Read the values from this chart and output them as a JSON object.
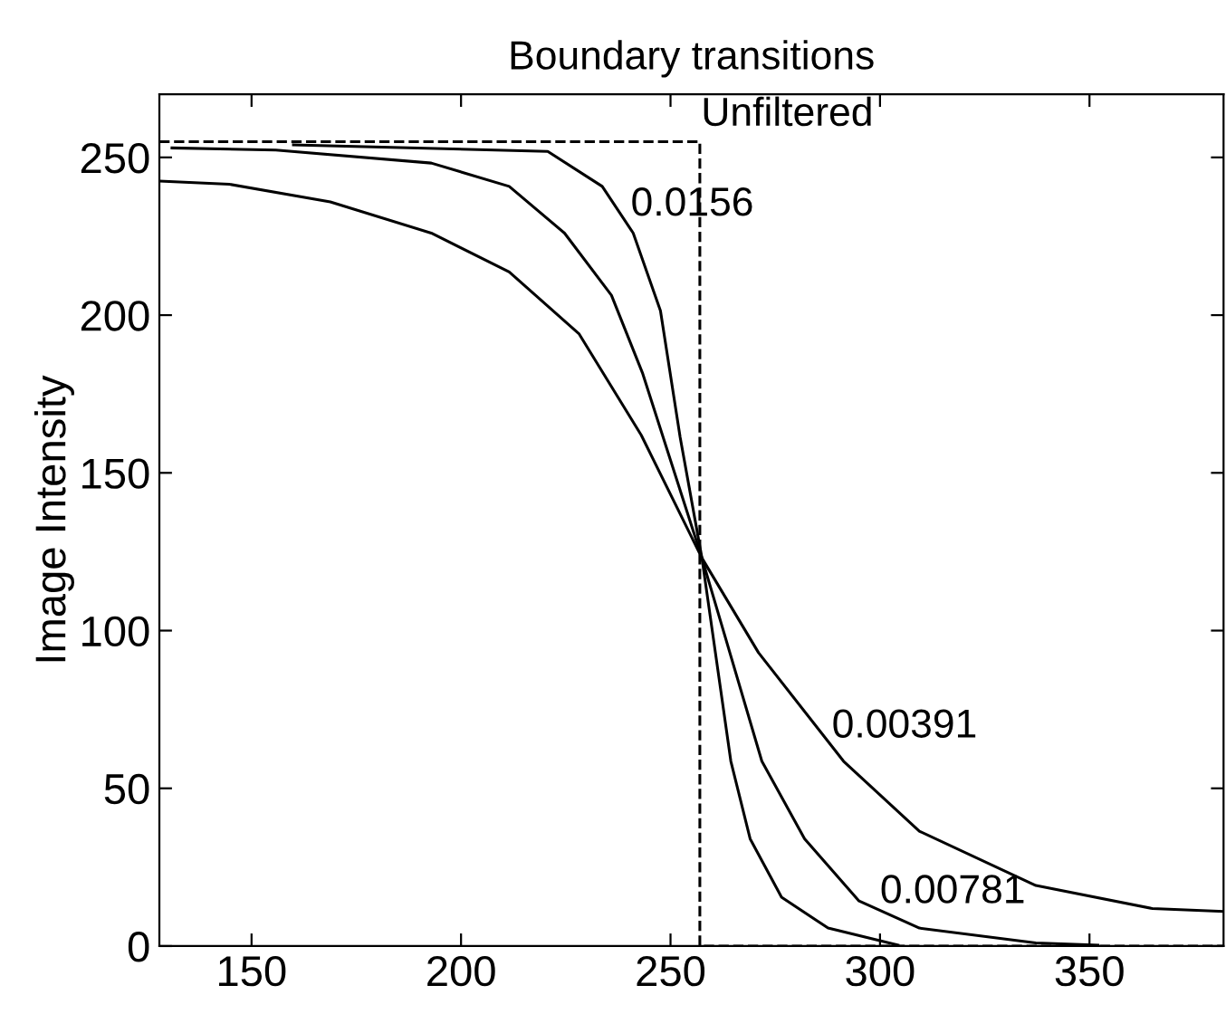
{
  "chart_data": {
    "type": "line",
    "title": "Boundary transitions",
    "ylabel": "Image Intensity",
    "xlim": [
      128,
      382
    ],
    "ylim": [
      0,
      270
    ],
    "xticks": [
      150,
      200,
      250,
      300,
      350
    ],
    "yticks": [
      0,
      50,
      100,
      150,
      200,
      250
    ],
    "grid": false,
    "legend": false,
    "marker": "none",
    "series": [
      {
        "color": "#000000",
        "line_style": "dashed",
        "x": [
          128,
          257,
          257,
          382
        ],
        "values": [
          255,
          255,
          0,
          0
        ]
      },
      {
        "color": "#000000",
        "x": [
          128,
          144.7,
          168.8,
          192.9,
          211.5,
          228.2,
          243,
          257.5,
          271,
          291.3,
          309.4,
          337.2,
          365,
          382
        ],
        "values": [
          242.5,
          241.5,
          235.9,
          226,
          213.7,
          194,
          162,
          123,
          93,
          58.6,
          36.4,
          19.2,
          11.9,
          11
        ]
      },
      {
        "color": "#000000",
        "x": [
          131,
          155.8,
          192.9,
          211.5,
          224.7,
          235.9,
          243.3,
          257.5,
          271.8,
          282,
          295,
          309.4,
          337.2,
          352
        ],
        "values": [
          253,
          252.3,
          248.2,
          240.8,
          226,
          206.3,
          181.7,
          123,
          58.6,
          34,
          14.3,
          5.7,
          1,
          0.3
        ]
      },
      {
        "color": "#000000",
        "x": [
          160,
          220.7,
          233.7,
          241.1,
          247.6,
          252.3,
          257.5,
          264.4,
          269,
          276.5,
          287.6,
          304.3
        ],
        "values": [
          254,
          251.9,
          240.8,
          226,
          201.4,
          161.3,
          123,
          58.6,
          34,
          15.5,
          5.7,
          0.3
        ]
      }
    ],
    "annotations": [
      {
        "text": "Unfiltered",
        "x": 257.3,
        "y": 257.4
      },
      {
        "text": "0.0156",
        "x": 240.5,
        "y": 228.9
      },
      {
        "text": "0.00391",
        "x": 288.5,
        "y": 63.5
      },
      {
        "text": "0.00781",
        "x": 300,
        "y": 11
      }
    ]
  }
}
